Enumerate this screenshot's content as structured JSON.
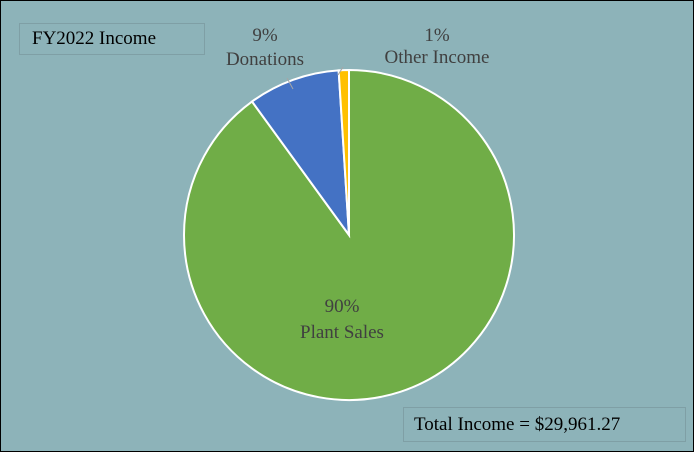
{
  "chart_data": {
    "type": "pie",
    "title": "FY2022 Income",
    "annotation": "Total Income = $29,961.27",
    "slices": [
      {
        "name": "Plant Sales",
        "percent": 90,
        "percent_label": "90%",
        "color": "#70ad47"
      },
      {
        "name": "Donations",
        "percent": 9,
        "percent_label": "9%",
        "color": "#4472c4"
      },
      {
        "name": "Other Income",
        "percent": 1,
        "percent_label": "1%",
        "color": "#ffc000"
      }
    ],
    "background_color": "#8db3b9",
    "slice_border_color": "#ffffff"
  }
}
